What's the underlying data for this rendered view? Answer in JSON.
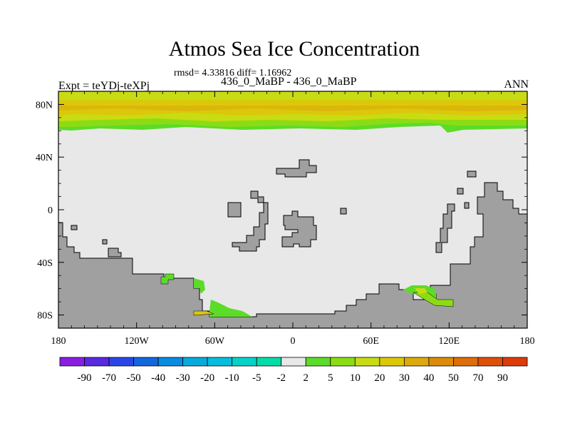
{
  "chart_data": {
    "type": "heatmap",
    "title": "Atmos Sea Ice Concentration",
    "stats_line": "rmsd= 4.33816 diff= 1.16962",
    "left_label": "Expt = teYDj-teXPj",
    "center_label": "436_0_MaBP - 436_0_MaBP",
    "right_label": "ANN",
    "x_ticks": [
      "180",
      "120W",
      "60W",
      "0",
      "60E",
      "120E",
      "180"
    ],
    "y_ticks": [
      "80N",
      "40N",
      "0",
      "40S",
      "80S"
    ],
    "x_range": [
      -180,
      180
    ],
    "y_range": [
      -90,
      90
    ],
    "colorbar": {
      "levels": [
        "-90",
        "-70",
        "-50",
        "-40",
        "-30",
        "-20",
        "-10",
        "-5",
        "-2",
        "2",
        "5",
        "10",
        "20",
        "30",
        "40",
        "50",
        "70",
        "90"
      ],
      "colors": [
        "#8a1ee0",
        "#5a28e0",
        "#2c46e6",
        "#1466de",
        "#0a8ce0",
        "#08aadc",
        "#06bedc",
        "#06d2c8",
        "#06dca8",
        "#e8e8e8",
        "#5cdc28",
        "#8cdc14",
        "#c8dc14",
        "#dcc80a",
        "#dcaa0a",
        "#dc8c0a",
        "#dc6e0a",
        "#dc500a",
        "#dc3c0a"
      ]
    },
    "background_color": "#e8e8e8",
    "land_color": "#a0a0a0"
  }
}
